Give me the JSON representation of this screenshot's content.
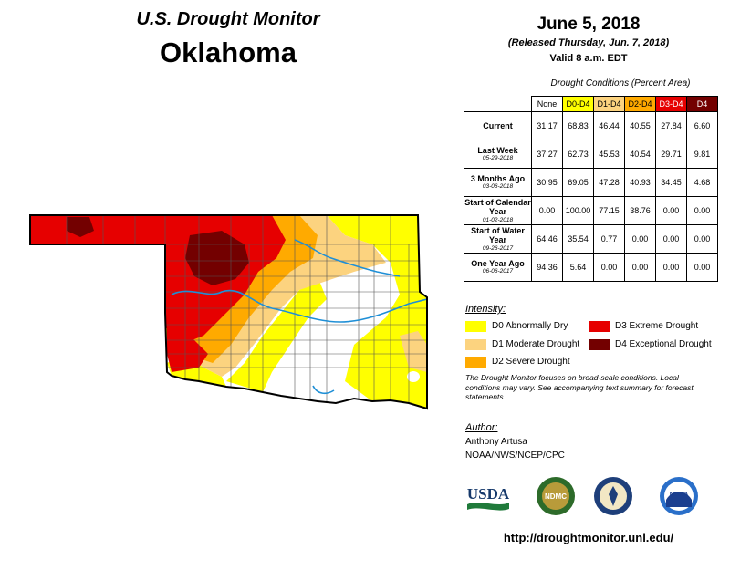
{
  "header": {
    "title": "U.S. Drought Monitor",
    "state": "Oklahoma",
    "date": "June 5, 2018",
    "released": "(Released Thursday, Jun. 7, 2018)",
    "valid": "Valid 8 a.m. EDT"
  },
  "table": {
    "title": "Drought Conditions (Percent Area)",
    "columns": [
      {
        "label": "None",
        "color": "#ffffff",
        "text_color": "#000000"
      },
      {
        "label": "D0-D4",
        "color": "#ffff00",
        "text_color": "#000000"
      },
      {
        "label": "D1-D4",
        "color": "#fcd37f",
        "text_color": "#000000"
      },
      {
        "label": "D2-D4",
        "color": "#ffaa00",
        "text_color": "#000000"
      },
      {
        "label": "D3-D4",
        "color": "#e60000",
        "text_color": "#ffffff"
      },
      {
        "label": "D4",
        "color": "#730000",
        "text_color": "#ffffff"
      }
    ],
    "rows": [
      {
        "label": "Current",
        "date": "",
        "values": [
          "31.17",
          "68.83",
          "46.44",
          "40.55",
          "27.84",
          "6.60"
        ]
      },
      {
        "label": "Last Week",
        "date": "05-29-2018",
        "values": [
          "37.27",
          "62.73",
          "45.53",
          "40.54",
          "29.71",
          "9.81"
        ]
      },
      {
        "label": "3 Months Ago",
        "date": "03-06-2018",
        "values": [
          "30.95",
          "69.05",
          "47.28",
          "40.93",
          "34.45",
          "4.68"
        ]
      },
      {
        "label": "Start of Calendar Year",
        "date": "01-02-2018",
        "values": [
          "0.00",
          "100.00",
          "77.15",
          "38.76",
          "0.00",
          "0.00"
        ]
      },
      {
        "label": "Start of Water Year",
        "date": "09-26-2017",
        "values": [
          "64.46",
          "35.54",
          "0.77",
          "0.00",
          "0.00",
          "0.00"
        ]
      },
      {
        "label": "One Year Ago",
        "date": "06-06-2017",
        "values": [
          "94.36",
          "5.64",
          "0.00",
          "0.00",
          "0.00",
          "0.00"
        ]
      }
    ]
  },
  "legend": {
    "title": "Intensity:",
    "items": [
      {
        "label": "D0 Abnormally Dry",
        "color": "#ffff00"
      },
      {
        "label": "D1 Moderate Drought",
        "color": "#fcd37f"
      },
      {
        "label": "D2 Severe Drought",
        "color": "#ffaa00"
      },
      {
        "label": "D3 Extreme Drought",
        "color": "#e60000"
      },
      {
        "label": "D4 Exceptional Drought",
        "color": "#730000"
      }
    ]
  },
  "focus_text": "The Drought Monitor focuses on broad-scale conditions. Local conditions may vary. See accompanying text summary for forecast statements.",
  "author": {
    "title": "Author:",
    "name": "Anthony Artusa",
    "org": "NOAA/NWS/NCEP/CPC"
  },
  "logos": [
    {
      "name": "usda-logo",
      "label": "USDA"
    },
    {
      "name": "ndmc-logo",
      "label": "NDMC"
    },
    {
      "name": "doc-seal",
      "label": ""
    },
    {
      "name": "noaa-logo",
      "label": "NOAA"
    }
  ],
  "url": "http://droughtmonitor.unl.edu/",
  "map": {
    "state": "Oklahoma",
    "river_color": "#1f8fd6",
    "county_line_color": "#555555"
  }
}
